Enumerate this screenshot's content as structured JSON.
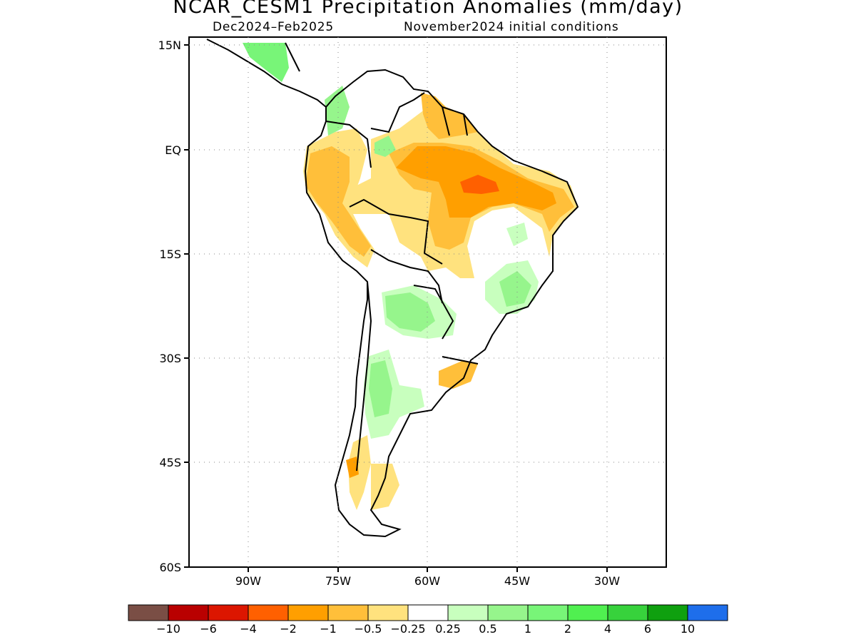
{
  "title": "NCAR_CESM1 Precipitation Anomalies (mm/day)",
  "subtitle_left": "Dec2024–Feb2025",
  "subtitle_right": "November2024 initial conditions",
  "axes": {
    "lat_labels": [
      "15N",
      "EQ",
      "15S",
      "30S",
      "45S",
      "60S"
    ],
    "lon_labels": [
      "90W",
      "75W",
      "60W",
      "45W",
      "30W"
    ]
  },
  "colorbar": {
    "colors": [
      "#7a4e45",
      "#b90000",
      "#dc1600",
      "#ff6000",
      "#ff9f00",
      "#ffbf3a",
      "#ffe27e",
      "#ffffff",
      "#c8ffbe",
      "#96f58c",
      "#78f578",
      "#50f050",
      "#37d23c",
      "#0fa00f",
      "#1e6eeb"
    ],
    "labels": [
      "−10",
      "−6",
      "−4",
      "−2",
      "−1",
      "−0.5",
      "−0.25",
      "0.25",
      "0.5",
      "1",
      "2",
      "4",
      "6",
      "10"
    ]
  },
  "anomaly_colors": {
    "light_yellow": "#ffe27e",
    "light_orange": "#ffbf3a",
    "orange": "#ff9f00",
    "dark_orange": "#ff6000",
    "pale_green": "#c8ffbe",
    "light_green": "#96f58c",
    "green": "#78f578"
  }
}
